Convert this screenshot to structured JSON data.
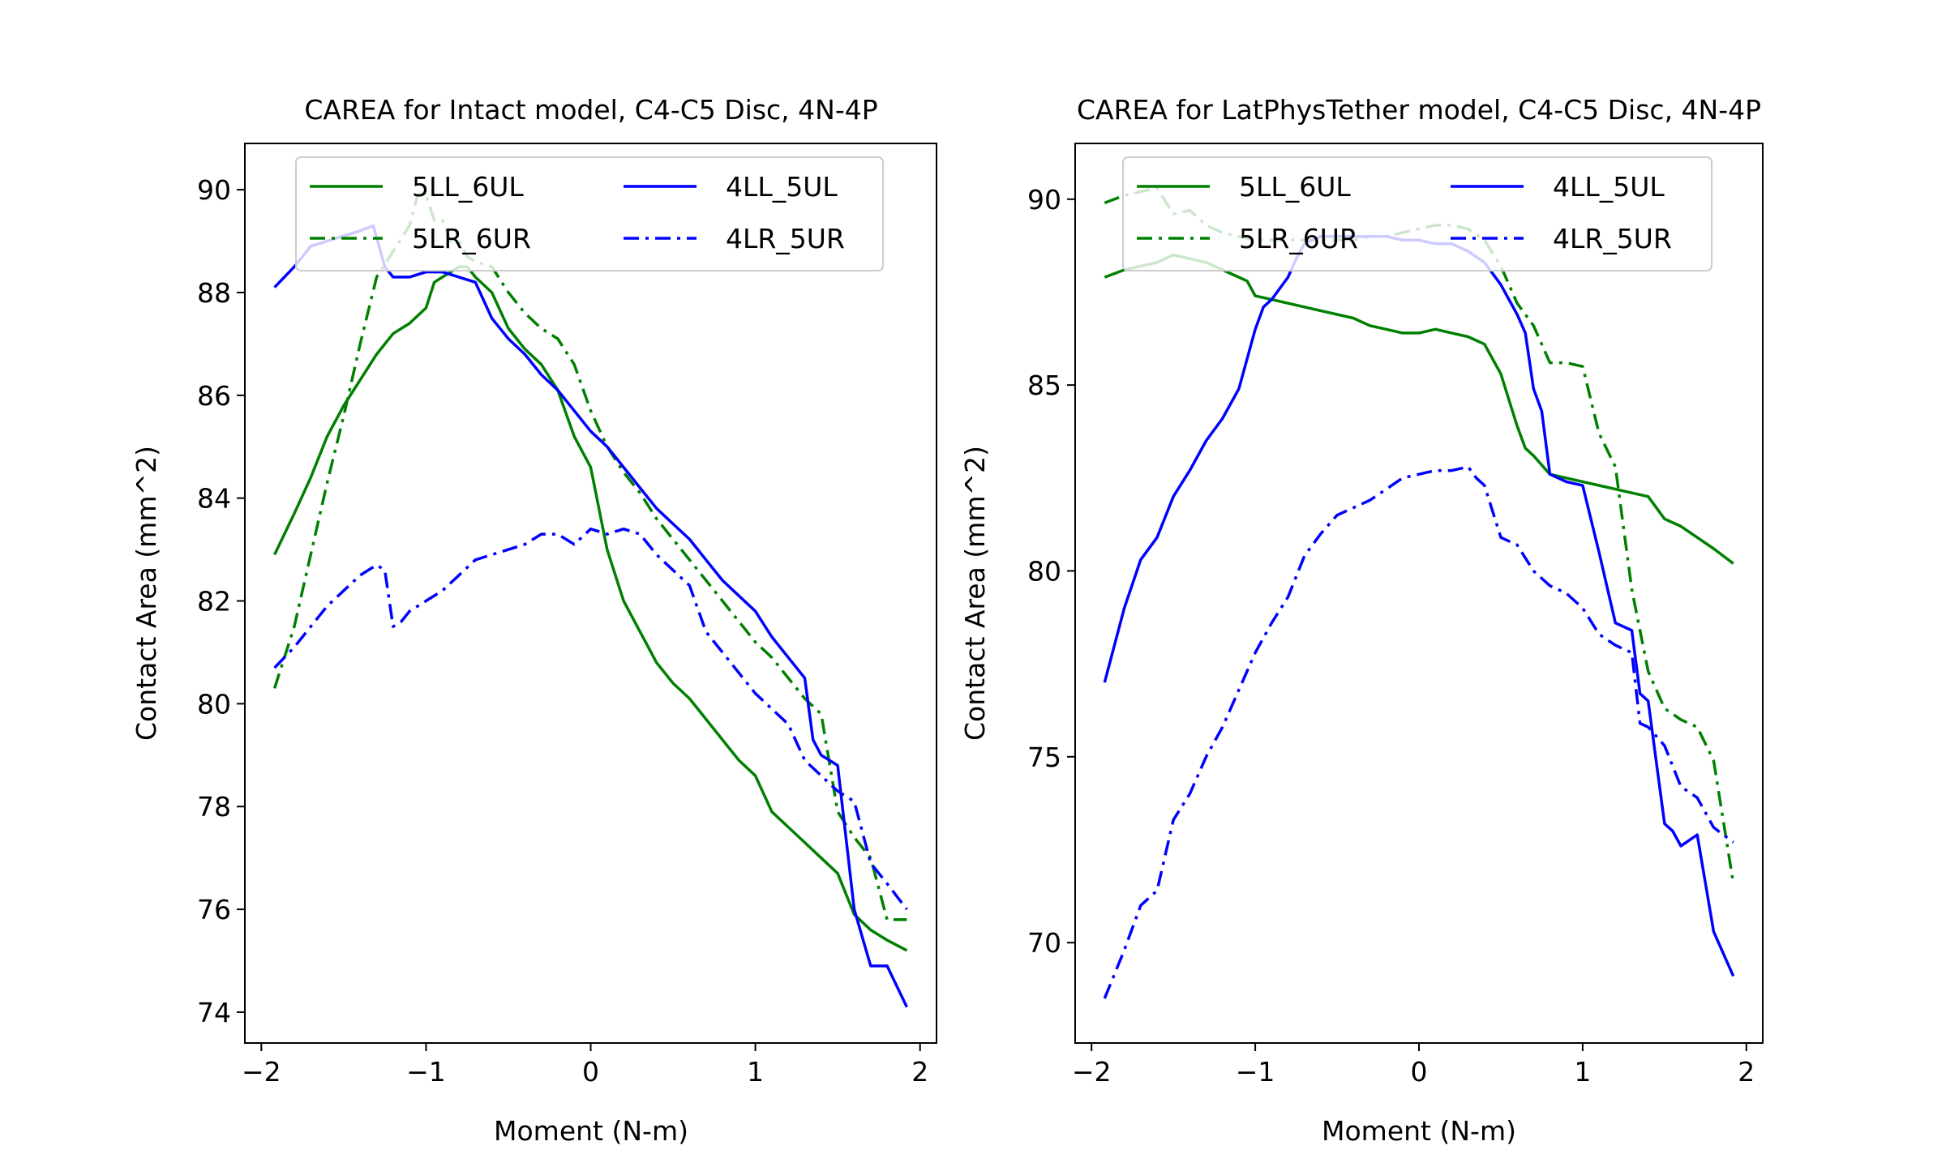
{
  "figure": {
    "background": "#ffffff"
  },
  "chart_data": [
    {
      "type": "line",
      "title": "CAREA for Intact model, C4-C5 Disc, 4N-4P",
      "xlabel": "Moment (N-m)",
      "ylabel": "Contact Area (mm^2)",
      "xlim": [
        -2.1,
        2.1
      ],
      "ylim": [
        73.4,
        90.9
      ],
      "xticks": [
        -2,
        -1,
        0,
        1,
        2
      ],
      "xtick_labels": [
        "−2",
        "−1",
        "0",
        "1",
        "2"
      ],
      "yticks": [
        74,
        76,
        78,
        80,
        82,
        84,
        86,
        88,
        90
      ],
      "ytick_labels": [
        "74",
        "76",
        "78",
        "80",
        "82",
        "84",
        "86",
        "88",
        "90"
      ],
      "grid": false,
      "legend": {
        "placement": "upper center",
        "columns": 2,
        "entries": [
          "5LL_6UL",
          "5LR_6UR",
          "4LL_5UL",
          "4LR_5UR"
        ]
      },
      "series": [
        {
          "name": "5LL_6UL",
          "color": "#008000",
          "style": "solid",
          "x": [
            -1.92,
            -1.8,
            -1.7,
            -1.6,
            -1.5,
            -1.4,
            -1.3,
            -1.2,
            -1.1,
            -1.0,
            -0.95,
            -0.9,
            -0.85,
            -0.8,
            -0.75,
            -0.7,
            -0.6,
            -0.5,
            -0.4,
            -0.3,
            -0.2,
            -0.1,
            0.0,
            0.1,
            0.2,
            0.3,
            0.4,
            0.5,
            0.6,
            0.7,
            0.8,
            0.9,
            1.0,
            1.1,
            1.2,
            1.3,
            1.4,
            1.5,
            1.6,
            1.7,
            1.8,
            1.92
          ],
          "y": [
            82.9,
            83.7,
            84.4,
            85.2,
            85.8,
            86.3,
            86.8,
            87.2,
            87.4,
            87.7,
            88.2,
            88.3,
            88.4,
            88.5,
            88.5,
            88.3,
            88.0,
            87.3,
            86.9,
            86.6,
            86.1,
            85.2,
            84.6,
            83.0,
            82.0,
            81.4,
            80.8,
            80.4,
            80.1,
            79.7,
            79.3,
            78.9,
            78.6,
            77.9,
            77.6,
            77.3,
            77.0,
            76.7,
            75.9,
            75.6,
            75.4,
            75.2
          ]
        },
        {
          "name": "5LR_6UR",
          "color": "#008000",
          "style": "dashdot",
          "x": [
            -1.92,
            -1.8,
            -1.7,
            -1.6,
            -1.5,
            -1.4,
            -1.3,
            -1.2,
            -1.1,
            -1.05,
            -1.0,
            -0.95,
            -0.9,
            -0.85,
            -0.8,
            -0.75,
            -0.7,
            -0.6,
            -0.5,
            -0.4,
            -0.3,
            -0.2,
            -0.1,
            0.0,
            0.1,
            0.2,
            0.3,
            0.4,
            0.5,
            0.6,
            0.7,
            0.8,
            0.9,
            1.0,
            1.1,
            1.2,
            1.3,
            1.4,
            1.5,
            1.6,
            1.7,
            1.8,
            1.92
          ],
          "y": [
            80.3,
            81.5,
            82.9,
            84.3,
            85.6,
            87.0,
            88.3,
            88.8,
            89.3,
            89.9,
            89.9,
            89.4,
            89.4,
            89.0,
            89.0,
            88.7,
            88.6,
            88.5,
            88.0,
            87.6,
            87.3,
            87.1,
            86.6,
            85.7,
            85.0,
            84.5,
            84.1,
            83.6,
            83.2,
            82.8,
            82.4,
            82.0,
            81.6,
            81.2,
            80.9,
            80.5,
            80.1,
            79.8,
            77.9,
            77.4,
            77.0,
            75.8,
            75.8
          ]
        },
        {
          "name": "4LL_5UL",
          "color": "#0000ff",
          "style": "solid",
          "x": [
            -1.92,
            -1.8,
            -1.7,
            -1.6,
            -1.5,
            -1.4,
            -1.32,
            -1.25,
            -1.2,
            -1.1,
            -1.0,
            -0.9,
            -0.8,
            -0.7,
            -0.6,
            -0.5,
            -0.4,
            -0.3,
            -0.2,
            -0.1,
            0.0,
            0.1,
            0.2,
            0.3,
            0.4,
            0.5,
            0.6,
            0.7,
            0.8,
            0.9,
            1.0,
            1.1,
            1.2,
            1.3,
            1.35,
            1.4,
            1.5,
            1.6,
            1.7,
            1.8,
            1.92
          ],
          "y": [
            88.1,
            88.5,
            88.9,
            89.0,
            89.1,
            89.2,
            89.3,
            88.5,
            88.3,
            88.3,
            88.4,
            88.4,
            88.3,
            88.2,
            87.5,
            87.1,
            86.8,
            86.4,
            86.1,
            85.7,
            85.3,
            85.0,
            84.6,
            84.2,
            83.8,
            83.5,
            83.2,
            82.8,
            82.4,
            82.1,
            81.8,
            81.3,
            80.9,
            80.5,
            79.3,
            79.0,
            78.8,
            76.0,
            74.9,
            74.9,
            74.1
          ]
        },
        {
          "name": "4LR_5UR",
          "color": "#0000ff",
          "style": "dashdot",
          "x": [
            -1.92,
            -1.8,
            -1.7,
            -1.6,
            -1.5,
            -1.4,
            -1.3,
            -1.25,
            -1.2,
            -1.15,
            -1.1,
            -1.0,
            -0.9,
            -0.8,
            -0.7,
            -0.6,
            -0.5,
            -0.4,
            -0.3,
            -0.2,
            -0.1,
            0.0,
            0.1,
            0.2,
            0.3,
            0.4,
            0.5,
            0.6,
            0.7,
            0.8,
            0.9,
            1.0,
            1.1,
            1.2,
            1.3,
            1.4,
            1.5,
            1.6,
            1.7,
            1.8,
            1.92
          ],
          "y": [
            80.7,
            81.1,
            81.5,
            81.9,
            82.2,
            82.5,
            82.7,
            82.6,
            81.5,
            81.6,
            81.8,
            82.0,
            82.2,
            82.5,
            82.8,
            82.9,
            83.0,
            83.1,
            83.3,
            83.3,
            83.1,
            83.4,
            83.3,
            83.4,
            83.3,
            82.9,
            82.6,
            82.3,
            81.4,
            81.0,
            80.6,
            80.2,
            79.9,
            79.6,
            78.9,
            78.6,
            78.3,
            78.1,
            76.9,
            76.5,
            76.0
          ]
        }
      ]
    },
    {
      "type": "line",
      "title": "CAREA for LatPhysTether model, C4-C5 Disc, 4N-4P",
      "xlabel": "Moment (N-m)",
      "ylabel": "Contact Area (mm^2)",
      "xlim": [
        -2.1,
        2.1
      ],
      "ylim": [
        67.3,
        91.5
      ],
      "xticks": [
        -2,
        -1,
        0,
        1,
        2
      ],
      "xtick_labels": [
        "−2",
        "−1",
        "0",
        "1",
        "2"
      ],
      "yticks": [
        70,
        75,
        80,
        85,
        90
      ],
      "ytick_labels": [
        "70",
        "75",
        "80",
        "85",
        "90"
      ],
      "grid": false,
      "legend": {
        "placement": "upper center",
        "columns": 2,
        "entries": [
          "5LL_6UL",
          "5LR_6UR",
          "4LL_5UL",
          "4LR_5UR"
        ]
      },
      "series": [
        {
          "name": "5LL_6UL",
          "color": "#008000",
          "style": "solid",
          "x": [
            -1.92,
            -1.8,
            -1.7,
            -1.6,
            -1.5,
            -1.4,
            -1.3,
            -1.2,
            -1.1,
            -1.05,
            -1.0,
            -0.9,
            -0.8,
            -0.7,
            -0.6,
            -0.5,
            -0.4,
            -0.3,
            -0.2,
            -0.1,
            0.0,
            0.1,
            0.2,
            0.3,
            0.4,
            0.5,
            0.55,
            0.6,
            0.65,
            0.7,
            0.8,
            0.9,
            1.0,
            1.1,
            1.2,
            1.3,
            1.4,
            1.5,
            1.6,
            1.7,
            1.8,
            1.92
          ],
          "y": [
            87.9,
            88.1,
            88.2,
            88.3,
            88.5,
            88.4,
            88.3,
            88.1,
            87.9,
            87.8,
            87.4,
            87.3,
            87.2,
            87.1,
            87.0,
            86.9,
            86.8,
            86.6,
            86.5,
            86.4,
            86.4,
            86.5,
            86.4,
            86.3,
            86.1,
            85.3,
            84.6,
            83.9,
            83.3,
            83.1,
            82.6,
            82.5,
            82.4,
            82.3,
            82.2,
            82.1,
            82.0,
            81.4,
            81.2,
            80.9,
            80.6,
            80.2
          ]
        },
        {
          "name": "5LR_6UR",
          "color": "#008000",
          "style": "dashdot",
          "x": [
            -1.92,
            -1.8,
            -1.7,
            -1.6,
            -1.5,
            -1.4,
            -1.3,
            -1.2,
            -1.1,
            -1.0,
            -0.9,
            -0.8,
            -0.7,
            -0.6,
            -0.5,
            -0.4,
            -0.3,
            -0.2,
            -0.1,
            0.0,
            0.1,
            0.2,
            0.3,
            0.4,
            0.5,
            0.6,
            0.7,
            0.8,
            0.9,
            1.0,
            1.1,
            1.2,
            1.3,
            1.4,
            1.5,
            1.6,
            1.7,
            1.8,
            1.92
          ],
          "y": [
            89.9,
            90.1,
            90.2,
            90.3,
            89.6,
            89.7,
            89.3,
            89.1,
            89.0,
            88.9,
            88.9,
            88.9,
            88.9,
            88.9,
            88.9,
            88.9,
            89.0,
            89.0,
            89.1,
            89.2,
            89.3,
            89.3,
            89.2,
            88.9,
            88.2,
            87.2,
            86.6,
            85.6,
            85.6,
            85.5,
            83.7,
            82.8,
            79.5,
            77.3,
            76.3,
            76.0,
            75.8,
            74.9,
            71.6
          ]
        },
        {
          "name": "4LL_5UL",
          "color": "#0000ff",
          "style": "solid",
          "x": [
            -1.92,
            -1.8,
            -1.7,
            -1.6,
            -1.5,
            -1.4,
            -1.3,
            -1.2,
            -1.1,
            -1.0,
            -0.95,
            -0.9,
            -0.8,
            -0.75,
            -0.7,
            -0.6,
            -0.5,
            -0.4,
            -0.3,
            -0.2,
            -0.1,
            0.0,
            0.1,
            0.2,
            0.3,
            0.4,
            0.5,
            0.55,
            0.6,
            0.65,
            0.7,
            0.75,
            0.8,
            0.9,
            1.0,
            1.1,
            1.2,
            1.3,
            1.35,
            1.4,
            1.5,
            1.55,
            1.6,
            1.7,
            1.8,
            1.92
          ],
          "y": [
            77.0,
            79.0,
            80.3,
            80.9,
            82.0,
            82.7,
            83.5,
            84.1,
            84.9,
            86.5,
            87.1,
            87.3,
            87.9,
            88.4,
            88.8,
            89.0,
            89.0,
            89.0,
            89.0,
            89.0,
            88.9,
            88.9,
            88.8,
            88.8,
            88.6,
            88.3,
            87.7,
            87.3,
            86.9,
            86.4,
            84.9,
            84.3,
            82.6,
            82.4,
            82.3,
            80.5,
            78.6,
            78.4,
            76.7,
            76.5,
            73.2,
            73.0,
            72.6,
            72.9,
            70.3,
            69.1
          ]
        },
        {
          "name": "4LR_5UR",
          "color": "#0000ff",
          "style": "dashdot",
          "x": [
            -1.92,
            -1.8,
            -1.7,
            -1.6,
            -1.5,
            -1.4,
            -1.3,
            -1.2,
            -1.1,
            -1.0,
            -0.9,
            -0.8,
            -0.7,
            -0.6,
            -0.5,
            -0.4,
            -0.3,
            -0.2,
            -0.1,
            0.0,
            0.1,
            0.2,
            0.3,
            0.35,
            0.4,
            0.5,
            0.6,
            0.7,
            0.8,
            0.9,
            1.0,
            1.1,
            1.2,
            1.3,
            1.35,
            1.4,
            1.5,
            1.6,
            1.7,
            1.8,
            1.92
          ],
          "y": [
            68.5,
            69.8,
            71.0,
            71.4,
            73.3,
            74.0,
            75.0,
            75.8,
            76.8,
            77.8,
            78.6,
            79.3,
            80.4,
            81.0,
            81.5,
            81.7,
            81.9,
            82.2,
            82.5,
            82.6,
            82.7,
            82.7,
            82.8,
            82.5,
            82.3,
            80.9,
            80.7,
            80.0,
            79.6,
            79.4,
            79.0,
            78.3,
            78.0,
            77.8,
            75.9,
            75.8,
            75.3,
            74.2,
            73.9,
            73.1,
            72.7
          ]
        }
      ]
    }
  ]
}
